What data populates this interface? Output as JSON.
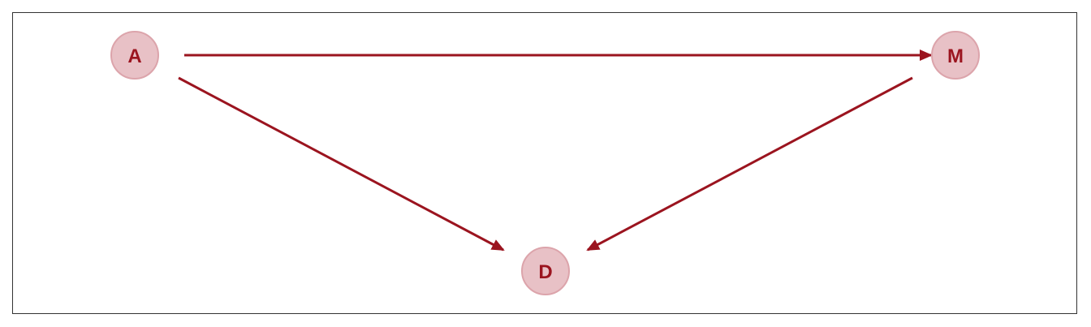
{
  "colors": {
    "edge": "#9b141f",
    "node_fill": "#e8c1c6",
    "node_stroke": "#dca4ab",
    "label": "#9b141f"
  },
  "nodes": {
    "a": {
      "label": "A"
    },
    "m": {
      "label": "M"
    },
    "d": {
      "label": "D"
    }
  },
  "edges": [
    {
      "from": "A",
      "to": "M"
    },
    {
      "from": "A",
      "to": "D"
    },
    {
      "from": "M",
      "to": "D"
    }
  ]
}
